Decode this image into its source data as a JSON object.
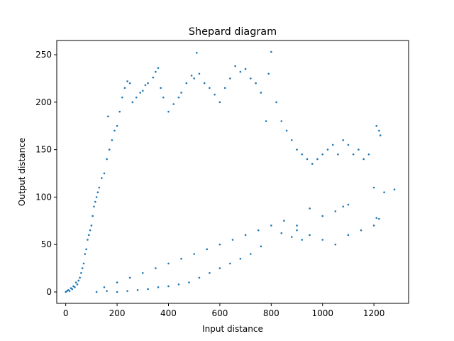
{
  "chart_data": {
    "type": "scatter",
    "title": "Shepard diagram",
    "xlabel": "Input distance",
    "ylabel": "Output distance",
    "xlim": [
      -35,
      1335
    ],
    "ylim": [
      -12,
      265
    ],
    "xticks": [
      0,
      200,
      400,
      600,
      800,
      1000,
      1200
    ],
    "yticks": [
      0,
      50,
      100,
      150,
      200,
      250
    ],
    "grid": false,
    "legend": "none",
    "colors": {
      "marker": "#1f77b4"
    },
    "series": [
      {
        "points": [
          [
            0,
            0
          ],
          [
            5,
            1
          ],
          [
            10,
            2
          ],
          [
            15,
            1
          ],
          [
            20,
            4
          ],
          [
            25,
            3
          ],
          [
            30,
            6
          ],
          [
            35,
            5
          ],
          [
            40,
            10
          ],
          [
            45,
            8
          ],
          [
            50,
            12
          ],
          [
            55,
            15
          ],
          [
            60,
            20
          ],
          [
            65,
            25
          ],
          [
            70,
            30
          ],
          [
            75,
            40
          ],
          [
            80,
            45
          ],
          [
            85,
            55
          ],
          [
            90,
            60
          ],
          [
            95,
            65
          ],
          [
            100,
            70
          ],
          [
            105,
            80
          ],
          [
            110,
            90
          ],
          [
            115,
            95
          ],
          [
            120,
            100
          ],
          [
            125,
            105
          ],
          [
            130,
            110
          ],
          [
            140,
            120
          ],
          [
            150,
            125
          ],
          [
            160,
            140
          ],
          [
            165,
            185
          ],
          [
            170,
            150
          ],
          [
            180,
            160
          ],
          [
            190,
            170
          ],
          [
            200,
            175
          ],
          [
            210,
            190
          ],
          [
            220,
            205
          ],
          [
            230,
            215
          ],
          [
            240,
            222
          ],
          [
            250,
            220
          ],
          [
            260,
            200
          ],
          [
            275,
            205
          ],
          [
            290,
            210
          ],
          [
            300,
            212
          ],
          [
            310,
            218
          ],
          [
            320,
            220
          ],
          [
            340,
            226
          ],
          [
            350,
            232
          ],
          [
            360,
            236
          ],
          [
            370,
            215
          ],
          [
            380,
            205
          ],
          [
            400,
            190
          ],
          [
            420,
            198
          ],
          [
            440,
            205
          ],
          [
            450,
            210
          ],
          [
            470,
            220
          ],
          [
            490,
            228
          ],
          [
            500,
            225
          ],
          [
            510,
            252
          ],
          [
            520,
            230
          ],
          [
            540,
            220
          ],
          [
            560,
            215
          ],
          [
            580,
            208
          ],
          [
            600,
            200
          ],
          [
            620,
            215
          ],
          [
            640,
            225
          ],
          [
            660,
            238
          ],
          [
            680,
            232
          ],
          [
            700,
            235
          ],
          [
            720,
            225
          ],
          [
            740,
            220
          ],
          [
            760,
            210
          ],
          [
            780,
            180
          ],
          [
            790,
            230
          ],
          [
            800,
            253
          ],
          [
            820,
            200
          ],
          [
            840,
            180
          ],
          [
            860,
            170
          ],
          [
            880,
            160
          ],
          [
            900,
            150
          ],
          [
            920,
            145
          ],
          [
            940,
            140
          ],
          [
            960,
            135
          ],
          [
            980,
            140
          ],
          [
            1000,
            145
          ],
          [
            1020,
            150
          ],
          [
            1040,
            155
          ],
          [
            1060,
            145
          ],
          [
            1080,
            160
          ],
          [
            1100,
            155
          ],
          [
            1120,
            145
          ],
          [
            1140,
            150
          ],
          [
            1160,
            140
          ],
          [
            1180,
            145
          ],
          [
            1200,
            110
          ],
          [
            1210,
            175
          ],
          [
            1220,
            170
          ],
          [
            1225,
            165
          ],
          [
            1240,
            105
          ],
          [
            1280,
            108
          ],
          [
            150,
            5
          ],
          [
            200,
            10
          ],
          [
            250,
            15
          ],
          [
            300,
            20
          ],
          [
            350,
            25
          ],
          [
            400,
            30
          ],
          [
            450,
            35
          ],
          [
            500,
            40
          ],
          [
            550,
            45
          ],
          [
            600,
            50
          ],
          [
            650,
            55
          ],
          [
            700,
            60
          ],
          [
            750,
            65
          ],
          [
            800,
            70
          ],
          [
            850,
            75
          ],
          [
            900,
            65
          ],
          [
            950,
            60
          ],
          [
            1000,
            55
          ],
          [
            1050,
            50
          ],
          [
            1100,
            60
          ],
          [
            1150,
            65
          ],
          [
            1200,
            70
          ],
          [
            1210,
            78
          ],
          [
            1220,
            77
          ],
          [
            1000,
            80
          ],
          [
            1050,
            85
          ],
          [
            1080,
            90
          ],
          [
            1100,
            92
          ],
          [
            950,
            88
          ],
          [
            900,
            70
          ],
          [
            920,
            55
          ],
          [
            880,
            58
          ],
          [
            840,
            62
          ],
          [
            760,
            48
          ],
          [
            720,
            40
          ],
          [
            680,
            35
          ],
          [
            640,
            30
          ],
          [
            600,
            25
          ],
          [
            560,
            20
          ],
          [
            520,
            15
          ],
          [
            480,
            10
          ],
          [
            440,
            8
          ],
          [
            400,
            6
          ],
          [
            360,
            5
          ],
          [
            320,
            3
          ],
          [
            280,
            2
          ],
          [
            240,
            1
          ],
          [
            200,
            0
          ],
          [
            160,
            1
          ],
          [
            120,
            0
          ]
        ]
      }
    ]
  }
}
